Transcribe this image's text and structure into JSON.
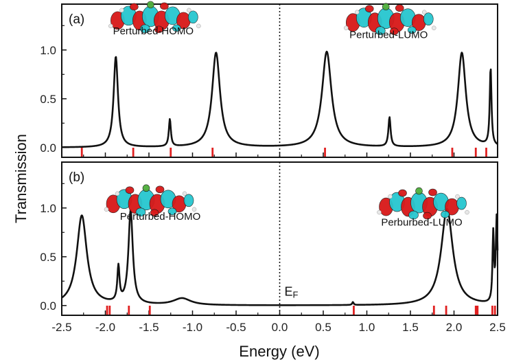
{
  "chart_data": {
    "type": "line",
    "xlabel": "Energy (eV)",
    "ylabel": "Transmission",
    "xlim": [
      -2.5,
      2.5
    ],
    "ylim": [
      -0.1,
      1.47
    ],
    "x_ticks": [
      "-2.5",
      "-2.0",
      "-1.5",
      "-1.0",
      "-0.5",
      "0.0",
      "0.5",
      "1.0",
      "1.5",
      "2.0",
      "2.5"
    ],
    "y_ticks": [
      "0.0",
      "0.5",
      "1.0"
    ],
    "fermi_level": {
      "x": 0.0,
      "label": "E",
      "label_sub": "F"
    },
    "marker_color": "#e02020",
    "line_color": "#111111",
    "panels": [
      {
        "label": "(a)",
        "annotations": [
          {
            "text": "Perturbed-HOMO",
            "x": -1.45,
            "y": 1.16,
            "orbital_x": -1.45,
            "orbital_y": 1.33
          },
          {
            "text": "Perturbed-LUMO",
            "x": 1.25,
            "y": 1.12,
            "orbital_x": 1.25,
            "orbital_y": 1.31
          }
        ],
        "peaks": [
          {
            "x0": -1.88,
            "h": 0.93,
            "w": 0.03
          },
          {
            "x0": -1.26,
            "h": 0.28,
            "w": 0.014
          },
          {
            "x0": -0.73,
            "h": 0.97,
            "w": 0.055
          },
          {
            "x0": 0.54,
            "h": 0.98,
            "w": 0.065
          },
          {
            "x0": 1.26,
            "h": 0.3,
            "w": 0.015
          },
          {
            "x0": 2.09,
            "h": 0.97,
            "w": 0.055
          },
          {
            "x0": 2.42,
            "h": 0.8,
            "w": 0.012
          }
        ],
        "markers": [
          -2.27,
          -1.68,
          -1.25,
          -0.77,
          0.52,
          1.98,
          2.25,
          2.37
        ]
      },
      {
        "label": "(b)",
        "annotations": [
          {
            "text": "Perturbed-HOMO",
            "x": -1.37,
            "y": 0.88,
            "orbital_x": -1.5,
            "orbital_y": 1.07
          },
          {
            "text": "Perburbed-LUMO",
            "x": 1.63,
            "y": 0.82,
            "orbital_x": 1.63,
            "orbital_y": 1.04
          }
        ],
        "peaks": [
          {
            "x0": -2.27,
            "h": 0.92,
            "w": 0.07
          },
          {
            "x0": -1.85,
            "h": 0.36,
            "w": 0.015
          },
          {
            "x0": -1.71,
            "h": 0.96,
            "w": 0.03
          },
          {
            "x0": -1.12,
            "h": 0.07,
            "w": 0.12
          },
          {
            "x0": 0.84,
            "h": 0.03,
            "w": 0.01
          },
          {
            "x0": 1.92,
            "h": 0.99,
            "w": 0.08
          },
          {
            "x0": 2.45,
            "h": 0.7,
            "w": 0.01
          },
          {
            "x0": 2.49,
            "h": 0.88,
            "w": 0.012
          }
        ],
        "markers": [
          -1.98,
          -1.95,
          -1.73,
          -1.49,
          0.85,
          1.77,
          1.91,
          2.25,
          2.27,
          2.44,
          2.47
        ]
      }
    ]
  }
}
